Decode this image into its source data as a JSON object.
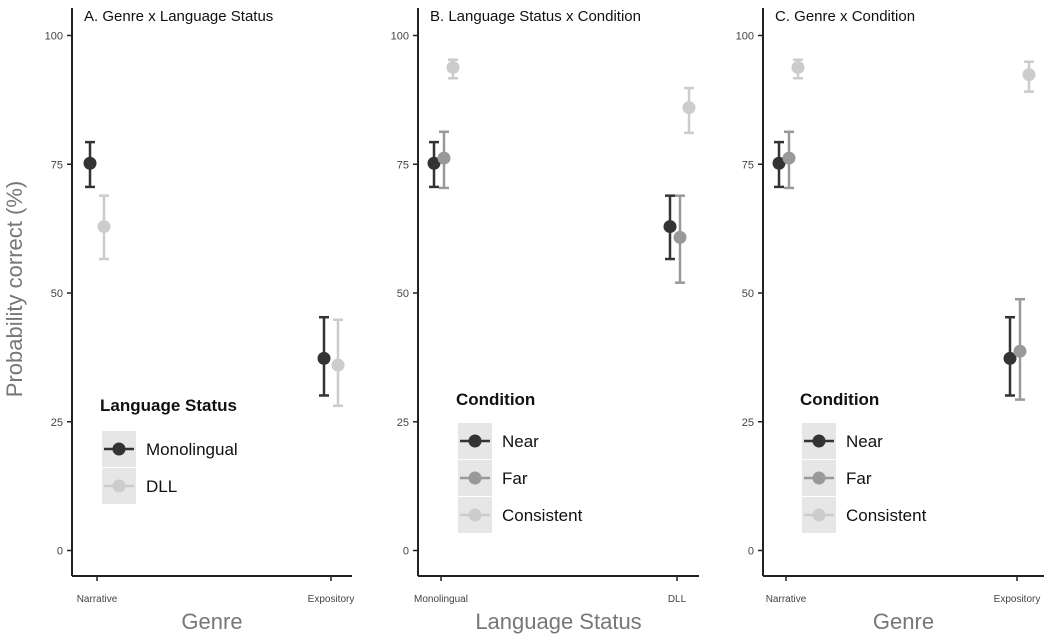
{
  "y_label": "Probability correct (%)",
  "chart_data": [
    {
      "type": "scatter",
      "title": "A. Genre x Language Status",
      "xlabel": "Genre",
      "ylabel": "Probability correct (%)",
      "ylim": [
        0,
        100
      ],
      "yticks": [
        0,
        25,
        50,
        75,
        100
      ],
      "categories": [
        "Narrative",
        "Expository"
      ],
      "legend": {
        "title": "Language Status",
        "position": "bottom-left"
      },
      "series": [
        {
          "name": "Monolingual",
          "color": "#333333",
          "values": [
            75.2,
            37.3
          ],
          "lower": [
            70.6,
            30.1
          ],
          "upper": [
            79.3,
            45.3
          ]
        },
        {
          "name": "DLL",
          "color": "#cccccc",
          "values": [
            62.9,
            36.0
          ],
          "lower": [
            56.6,
            28.1
          ],
          "upper": [
            68.9,
            44.8
          ]
        }
      ]
    },
    {
      "type": "scatter",
      "title": "B. Language Status x Condition",
      "xlabel": "Language Status",
      "ylabel": "",
      "ylim": [
        0,
        100
      ],
      "yticks": [
        0,
        25,
        50,
        75,
        100
      ],
      "categories": [
        "Monolingual",
        "DLL"
      ],
      "legend": {
        "title": "Condition",
        "position": "bottom-left"
      },
      "series": [
        {
          "name": "Near",
          "color": "#333333",
          "values": [
            75.2,
            62.9
          ],
          "lower": [
            70.6,
            56.6
          ],
          "upper": [
            79.3,
            68.9
          ]
        },
        {
          "name": "Far",
          "color": "#999999",
          "values": [
            76.2,
            60.8
          ],
          "lower": [
            70.4,
            52.0
          ],
          "upper": [
            81.3,
            68.9
          ]
        },
        {
          "name": "Consistent",
          "color": "#cccccc",
          "values": [
            93.8,
            86.0
          ],
          "lower": [
            91.7,
            81.1
          ],
          "upper": [
            95.3,
            89.8
          ]
        }
      ]
    },
    {
      "type": "scatter",
      "title": "C. Genre x Condition",
      "xlabel": "Genre",
      "ylabel": "",
      "ylim": [
        0,
        100
      ],
      "yticks": [
        0,
        25,
        50,
        75,
        100
      ],
      "categories": [
        "Narrative",
        "Expository"
      ],
      "legend": {
        "title": "Condition",
        "position": "bottom-left"
      },
      "series": [
        {
          "name": "Near",
          "color": "#333333",
          "values": [
            75.2,
            37.3
          ],
          "lower": [
            70.6,
            30.1
          ],
          "upper": [
            79.3,
            45.3
          ]
        },
        {
          "name": "Far",
          "color": "#999999",
          "values": [
            76.2,
            38.7
          ],
          "lower": [
            70.4,
            29.3
          ],
          "upper": [
            81.3,
            48.8
          ]
        },
        {
          "name": "Consistent",
          "color": "#cccccc",
          "values": [
            93.8,
            92.4
          ],
          "lower": [
            91.7,
            89.1
          ],
          "upper": [
            95.3,
            94.9
          ]
        }
      ]
    }
  ]
}
